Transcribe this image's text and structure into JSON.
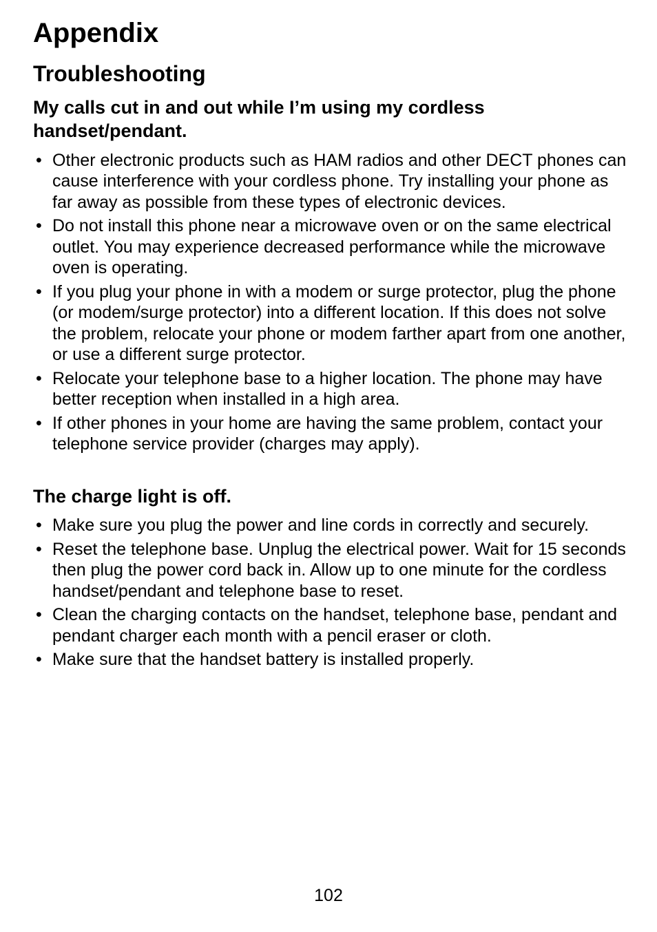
{
  "page": {
    "title": "Appendix",
    "subtitle": "Troubleshooting",
    "number": "102",
    "colors": {
      "background": "#ffffff",
      "text": "#000000"
    },
    "fonts": {
      "title_size": 40,
      "subtitle_size": 32,
      "question_size": 27,
      "body_size": 25,
      "family": "Helvetica"
    },
    "sections": [
      {
        "question": "My calls cut in and out while I’m using my cordless handset/pendant.",
        "bullets": [
          "Other electronic products such as HAM radios and other DECT phones can cause interference with your cordless phone. Try installing your phone as far away as possible from these types of electronic devices.",
          "Do not install this phone near a microwave oven or on the same electrical outlet. You may experience decreased performance while the microwave oven is operating.",
          "If you plug your phone in with a modem or surge protector, plug the phone (or modem/surge protector) into a different location. If this does not solve the problem, relocate your phone or modem farther apart from one another, or use a different surge protector.",
          "Relocate your telephone base to a higher location. The phone may have better reception when installed in a high area.",
          "If other phones in your home are having the same problem, contact your telephone service provider (charges may apply)."
        ]
      },
      {
        "question": "The charge light is off.",
        "bullets": [
          "Make sure you plug the power and line cords in correctly and securely.",
          "Reset the telephone base. Unplug the electrical power. Wait for 15 seconds then plug the power cord back in. Allow up to one minute for the cordless handset/pendant and telephone base to reset.",
          "Clean the charging contacts on the handset, telephone base, pendant and pendant charger each month with a pencil eraser or cloth.",
          "Make sure that the handset battery is installed properly."
        ]
      }
    ]
  }
}
